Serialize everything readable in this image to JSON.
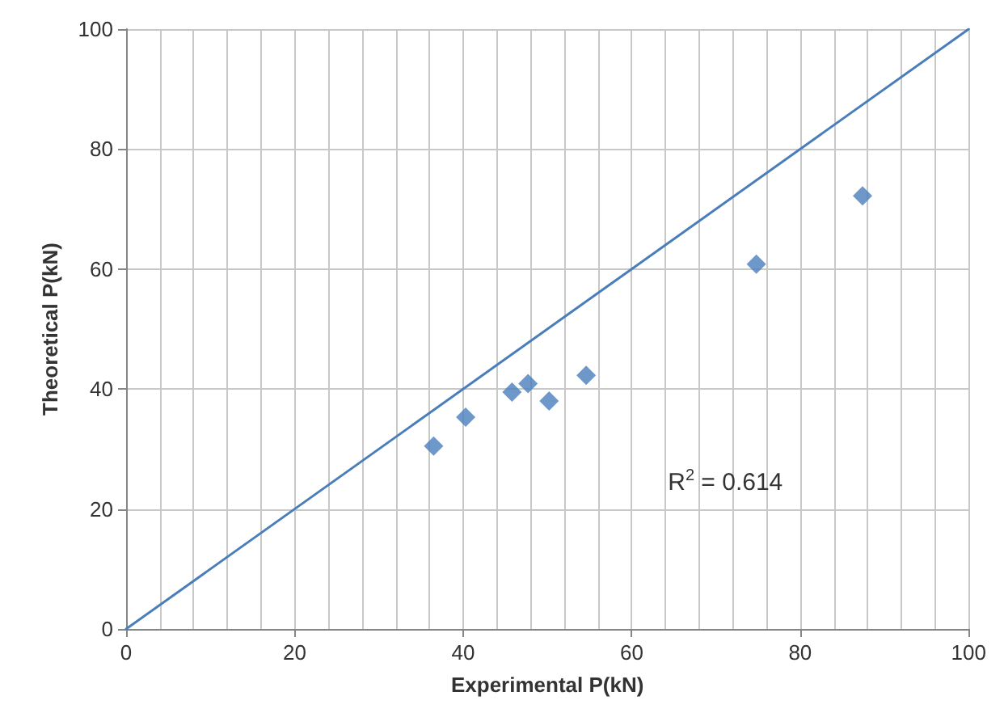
{
  "chart_data": {
    "type": "scatter",
    "xlabel": "Experimental P(kN)",
    "ylabel": "Theoretical P(kN)",
    "x": [
      36.5,
      40.3,
      45.8,
      47.7,
      50.2,
      54.6,
      74.8,
      87.4
    ],
    "series": [
      {
        "color": "#4a7ebb",
        "values": [
          30.5,
          35.3,
          39.5,
          40.9,
          38.0,
          42.3,
          60.8,
          72.2
        ],
        "marker": "diamond"
      },
      {
        "type": "line",
        "color": "#4a7ebb",
        "x": [
          0,
          100
        ],
        "values": [
          0,
          100
        ],
        "marker": "none",
        "line_style": "solid"
      }
    ],
    "xlim": [
      0,
      100
    ],
    "ylim": [
      0,
      100
    ],
    "xticks": [
      0,
      20,
      40,
      60,
      80,
      100
    ],
    "yticks": [
      0,
      20,
      40,
      60,
      80,
      100
    ],
    "grid": true,
    "annotations": [
      "R$^{2}$ = 0.614"
    ]
  }
}
